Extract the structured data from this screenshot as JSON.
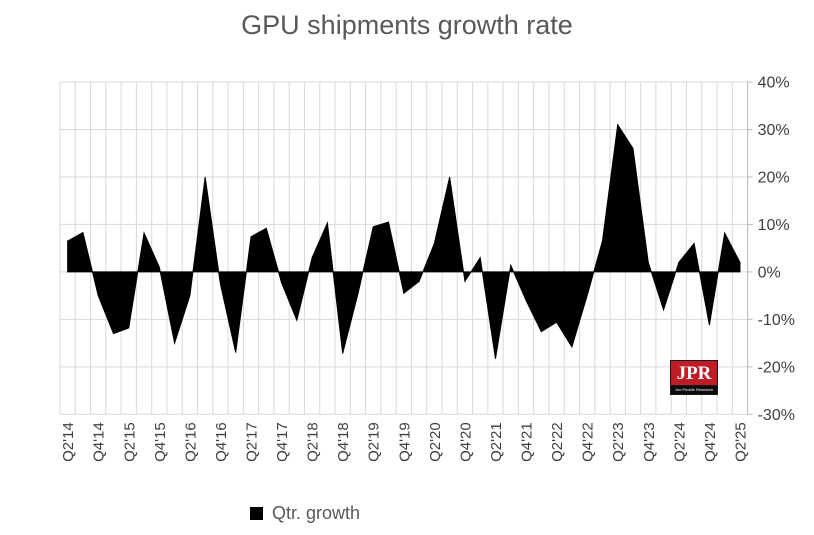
{
  "title": "GPU shipments growth rate",
  "legend": {
    "marker": "black-square",
    "label": "Qtr. growth"
  },
  "logo": {
    "text": "JPR",
    "subtext": "Jon Peddie Research"
  },
  "colors": {
    "area_fill": "#000000",
    "gridline": "#d9d9d9",
    "axis_line": "#bdbdbd",
    "title_text": "#595959",
    "tick_text": "#404040",
    "legend_text": "#595959",
    "logo_red": "#c01c25",
    "background": "#ffffff"
  },
  "chart_data": {
    "type": "area",
    "title": "GPU shipments growth rate",
    "series_name": "Qtr. growth",
    "categories": [
      "Q2'14",
      "Q3'14",
      "Q4'14",
      "Q1'15",
      "Q2'15",
      "Q3'15",
      "Q4'15",
      "Q1'16",
      "Q2'16",
      "Q3'16",
      "Q4'16",
      "Q1'17",
      "Q2'17",
      "Q3'17",
      "Q4'17",
      "Q1'18",
      "Q2'18",
      "Q3'18",
      "Q4'18",
      "Q1'19",
      "Q2'19",
      "Q3'19",
      "Q4'19",
      "Q1'20",
      "Q2'20",
      "Q3'20",
      "Q4'20",
      "Q1'21",
      "Q2'21",
      "Q3'21",
      "Q4'21",
      "Q1'22",
      "Q2'22",
      "Q3'22",
      "Q4'22",
      "Q1'23",
      "Q2'23",
      "Q3'23",
      "Q4'23",
      "Q1'24",
      "Q2'24",
      "Q3'24",
      "Q4'24",
      "Q1'25",
      "Q2'25"
    ],
    "values": [
      6.5,
      8.3,
      -5,
      -13,
      -11.8,
      8.2,
      1,
      -15,
      -5,
      20,
      -2.6,
      -17,
      7.4,
      9.2,
      -2.3,
      -10.2,
      3,
      10.3,
      -17.2,
      -4.6,
      9.5,
      10.5,
      -4.5,
      -2,
      6,
      20,
      -2,
      3,
      -18.3,
      1.4,
      -6,
      -12.6,
      -10.6,
      -15.8,
      -5,
      6.5,
      31,
      26,
      2,
      -8,
      2,
      6,
      -11.2,
      8.2,
      2
    ],
    "x_label_every": 2,
    "x_tick_labels": [
      "Q2'14",
      "Q4'14",
      "Q2'15",
      "Q4'15",
      "Q2'16",
      "Q4'16",
      "Q2'17",
      "Q4'17",
      "Q2'18",
      "Q4'18",
      "Q2'19",
      "Q4'19",
      "Q2'20",
      "Q4'20",
      "Q2'21",
      "Q4'21",
      "Q2'22",
      "Q4'22",
      "Q2'23",
      "Q4'23",
      "Q2'24",
      "Q4'24",
      "Q2'25"
    ],
    "y_tick_labels": [
      "40%",
      "30%",
      "20%",
      "10%",
      "0%",
      "-10%",
      "-20%",
      "-30%"
    ],
    "ylim": [
      -30,
      40
    ],
    "y_step": 10,
    "unit": "%",
    "grid": true,
    "legend_position": "bottom",
    "fill": "#000000"
  }
}
